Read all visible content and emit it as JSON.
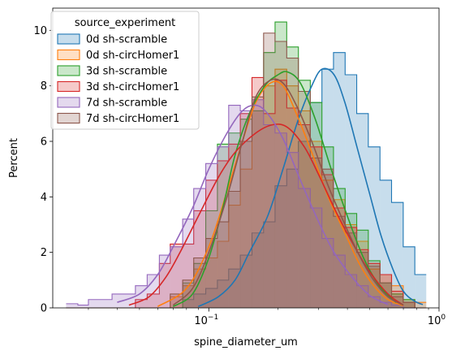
{
  "chart_data": {
    "type": "histogram",
    "xlabel": "spine_diameter_um",
    "ylabel": "Percent",
    "xscale": "log",
    "xlim": [
      0.021,
      1.0
    ],
    "ylim": [
      0,
      10.8
    ],
    "yticks": [
      0,
      2,
      4,
      6,
      8,
      10
    ],
    "xticks": [
      {
        "value": 0.1,
        "base": "10",
        "exp": "−1"
      },
      {
        "value": 1.0,
        "base": "10",
        "exp": "0"
      }
    ],
    "grid": false,
    "legend": {
      "title": "source_experiment",
      "placement": "top-left"
    },
    "bin_edges": [
      0.024,
      0.027,
      0.03,
      0.034,
      0.038,
      0.043,
      0.048,
      0.054,
      0.061,
      0.068,
      0.077,
      0.086,
      0.097,
      0.109,
      0.122,
      0.137,
      0.154,
      0.173,
      0.194,
      0.218,
      0.245,
      0.276,
      0.31,
      0.348,
      0.391,
      0.439,
      0.493,
      0.554,
      0.622,
      0.699,
      0.785,
      0.88
    ],
    "series": [
      {
        "name": "0d sh-scramble",
        "color": "#1f77b4",
        "percent": [
          0,
          0,
          0,
          0,
          0,
          0,
          0,
          0,
          0,
          0,
          0.3,
          0.5,
          0.7,
          1.0,
          1.4,
          1.9,
          2.7,
          3.1,
          4.4,
          5.0,
          6.0,
          7.4,
          8.6,
          9.2,
          8.4,
          7.0,
          5.8,
          4.6,
          3.8,
          2.2,
          1.2
        ],
        "kde": [
          [
            0.09,
            0.05
          ],
          [
            0.11,
            0.4
          ],
          [
            0.13,
            1.0
          ],
          [
            0.15,
            2.0
          ],
          [
            0.18,
            3.3
          ],
          [
            0.21,
            5.0
          ],
          [
            0.245,
            6.8
          ],
          [
            0.28,
            8.0
          ],
          [
            0.31,
            8.6
          ],
          [
            0.35,
            8.4
          ],
          [
            0.39,
            7.4
          ],
          [
            0.44,
            5.8
          ],
          [
            0.5,
            4.1
          ],
          [
            0.56,
            2.6
          ],
          [
            0.63,
            1.4
          ],
          [
            0.7,
            0.6
          ],
          [
            0.78,
            0.25
          ],
          [
            0.85,
            0.12
          ]
        ]
      },
      {
        "name": "0d sh-circHomer1",
        "color": "#ff7f0e",
        "percent": [
          0,
          0,
          0,
          0,
          0,
          0,
          0,
          0,
          0,
          0.4,
          0.8,
          1.4,
          1.8,
          2.4,
          3.7,
          5.0,
          7.1,
          8.0,
          8.6,
          8.0,
          7.1,
          6.0,
          4.6,
          3.9,
          3.0,
          2.4,
          1.4,
          1.2,
          0.8,
          0.3,
          0.2
        ],
        "kde": [
          [
            0.06,
            0.05
          ],
          [
            0.08,
            0.7
          ],
          [
            0.1,
            2.2
          ],
          [
            0.12,
            4.2
          ],
          [
            0.14,
            6.0
          ],
          [
            0.16,
            7.4
          ],
          [
            0.185,
            8.1
          ],
          [
            0.21,
            8.0
          ],
          [
            0.24,
            7.0
          ],
          [
            0.28,
            5.6
          ],
          [
            0.33,
            4.0
          ],
          [
            0.39,
            2.7
          ],
          [
            0.45,
            1.6
          ],
          [
            0.52,
            0.8
          ],
          [
            0.6,
            0.3
          ],
          [
            0.7,
            0.08
          ]
        ]
      },
      {
        "name": "3d sh-scramble",
        "color": "#2ca02c",
        "percent": [
          0,
          0,
          0,
          0,
          0,
          0,
          0,
          0,
          0,
          0,
          0.9,
          1.6,
          3.5,
          5.9,
          6.3,
          6.8,
          7.1,
          9.2,
          10.3,
          9.4,
          8.2,
          7.4,
          5.8,
          4.3,
          3.4,
          2.8,
          1.7,
          0.9,
          0.5,
          0.3,
          0
        ],
        "kde": [
          [
            0.07,
            0.05
          ],
          [
            0.085,
            0.5
          ],
          [
            0.1,
            1.8
          ],
          [
            0.115,
            3.6
          ],
          [
            0.13,
            5.5
          ],
          [
            0.15,
            7.0
          ],
          [
            0.175,
            8.0
          ],
          [
            0.2,
            8.4
          ],
          [
            0.22,
            8.5
          ],
          [
            0.25,
            8.1
          ],
          [
            0.29,
            6.8
          ],
          [
            0.34,
            5.0
          ],
          [
            0.4,
            3.3
          ],
          [
            0.47,
            1.8
          ],
          [
            0.55,
            0.8
          ],
          [
            0.65,
            0.2
          ]
        ]
      },
      {
        "name": "3d sh-circHomer1",
        "color": "#d62728",
        "percent": [
          0,
          0,
          0,
          0,
          0,
          0,
          0.3,
          0.5,
          1.6,
          2.3,
          2.3,
          3.5,
          4.6,
          5.3,
          5.9,
          7.0,
          8.3,
          7.0,
          8.2,
          7.2,
          6.6,
          5.8,
          4.8,
          3.6,
          2.9,
          2.1,
          1.6,
          1.2,
          0.6,
          0.2,
          0
        ],
        "kde": [
          [
            0.045,
            0.1
          ],
          [
            0.055,
            0.4
          ],
          [
            0.065,
            1.1
          ],
          [
            0.075,
            2.0
          ],
          [
            0.09,
            3.3
          ],
          [
            0.11,
            4.7
          ],
          [
            0.13,
            5.6
          ],
          [
            0.16,
            6.3
          ],
          [
            0.19,
            6.6
          ],
          [
            0.22,
            6.5
          ],
          [
            0.26,
            5.8
          ],
          [
            0.3,
            4.8
          ],
          [
            0.36,
            3.4
          ],
          [
            0.43,
            2.2
          ],
          [
            0.5,
            1.3
          ],
          [
            0.6,
            0.5
          ],
          [
            0.7,
            0.1
          ]
        ]
      },
      {
        "name": "7d sh-scramble",
        "color": "#9467bd",
        "percent": [
          0.15,
          0.1,
          0.3,
          0.3,
          0.5,
          0.5,
          0.8,
          1.2,
          1.9,
          2.2,
          3.2,
          4.3,
          5.2,
          5.8,
          7.3,
          7.1,
          7.5,
          6.6,
          6.3,
          5.6,
          4.3,
          3.6,
          2.5,
          1.9,
          1.2,
          0.8,
          0.4,
          0.2,
          0.1,
          0,
          0
        ],
        "kde": [
          [
            0.04,
            0.2
          ],
          [
            0.05,
            0.5
          ],
          [
            0.06,
            1.2
          ],
          [
            0.07,
            2.2
          ],
          [
            0.085,
            3.6
          ],
          [
            0.1,
            5.0
          ],
          [
            0.12,
            6.3
          ],
          [
            0.14,
            7.1
          ],
          [
            0.16,
            7.3
          ],
          [
            0.18,
            7.0
          ],
          [
            0.21,
            6.1
          ],
          [
            0.25,
            4.6
          ],
          [
            0.3,
            3.1
          ],
          [
            0.35,
            2.0
          ],
          [
            0.42,
            1.1
          ],
          [
            0.5,
            0.45
          ],
          [
            0.6,
            0.12
          ]
        ]
      },
      {
        "name": "7d sh-circHomer1",
        "color": "#8c564b",
        "percent": [
          0,
          0,
          0,
          0,
          0,
          0,
          0,
          0,
          0,
          0.5,
          1.0,
          1.8,
          2.5,
          3.1,
          4.2,
          6.0,
          7.6,
          9.9,
          9.6,
          9.0,
          7.8,
          5.4,
          5.0,
          3.3,
          2.7,
          2.0,
          1.5,
          0.9,
          0.4,
          0.2,
          0
        ],
        "kde": [
          [
            0.07,
            0.1
          ],
          [
            0.085,
            0.7
          ],
          [
            0.1,
            2.0
          ],
          [
            0.12,
            4.0
          ],
          [
            0.14,
            6.0
          ],
          [
            0.16,
            7.6
          ],
          [
            0.185,
            8.2
          ],
          [
            0.21,
            8.1
          ],
          [
            0.24,
            7.3
          ],
          [
            0.28,
            6.0
          ],
          [
            0.33,
            4.4
          ],
          [
            0.39,
            3.0
          ],
          [
            0.45,
            1.9
          ],
          [
            0.52,
            1.0
          ],
          [
            0.6,
            0.4
          ],
          [
            0.7,
            0.1
          ]
        ]
      }
    ]
  }
}
